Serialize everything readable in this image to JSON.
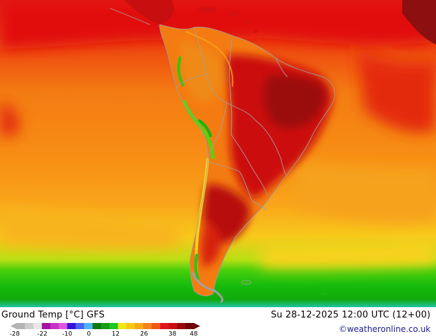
{
  "map": {
    "title": "Ground Temp [°C] GFS",
    "valid_time": "Su 28-12-2025 12:00 UTC (12+00)",
    "credit": "©weatheronline.co.uk",
    "region": "South America",
    "colors": {
      "deep_red": "#8b0f0f",
      "red": "#d40d0d",
      "red_orange": "#e8380e",
      "orange": "#f47b12",
      "light_orange": "#f9a41a",
      "yellow": "#f6d21d",
      "light_green": "#5ad20a",
      "green": "#14b60c",
      "cyan": "#22d8e6",
      "border": "#a0a0a0"
    }
  },
  "legend": {
    "ticks": [
      "-28",
      "-22",
      "-10",
      "0",
      "12",
      "26",
      "38",
      "48"
    ],
    "colors": [
      "#b4b4b4",
      "#cdcdcd",
      "#e6e6e6",
      "#a512a5",
      "#c832c8",
      "#e155e1",
      "#3214dc",
      "#4664f0",
      "#50b4ff",
      "#0f780f",
      "#14a014",
      "#1ec81e",
      "#f0e614",
      "#f5c814",
      "#f8aa14",
      "#f5821e",
      "#f05a14",
      "#e1141e",
      "#c80f0f",
      "#960a0a",
      "#6e0505"
    ]
  }
}
